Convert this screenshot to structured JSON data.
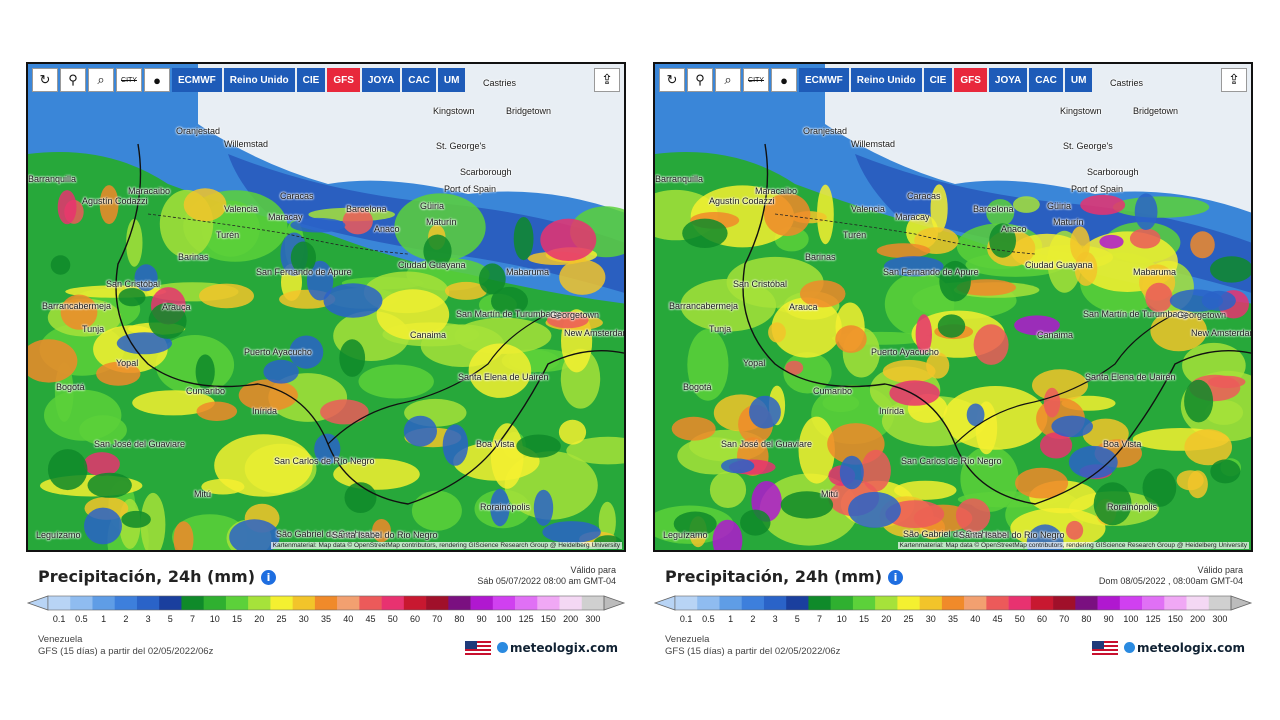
{
  "toolbar": {
    "icons": [
      "refresh-icon",
      "location-pin-icon",
      "zoom-icon",
      "city-toggle-icon",
      "dot-icon"
    ],
    "city_label": "CITY",
    "models": [
      "ECMWF",
      "Reino Unido",
      "CIE",
      "GFS",
      "JOYA",
      "CAC",
      "UM"
    ],
    "active_model": "GFS",
    "share_icon": "share-icon"
  },
  "places": [
    "Castries",
    "Kingstown",
    "Bridgetown",
    "St. George's",
    "Oranjestad",
    "Willemstad",
    "Scarborough",
    "Port of Spain",
    "Barranquilla",
    "Maracaibo",
    "Caracas",
    "Valencia",
    "Maracay",
    "Barcelona",
    "Güiria",
    "Maturín",
    "Agustín Codazzi",
    "Anaco",
    "Turén",
    "Barinas",
    "Ciudad Guayana",
    "Mabaruma",
    "San Cristóbal",
    "San Fernando de Apure",
    "Barrancabermeja",
    "Arauca",
    "San Martín de Turumbang",
    "Georgetown",
    "New Amsterdam",
    "Canaima",
    "Puerto Ayacucho",
    "Tunja",
    "Yopal",
    "Bogotá",
    "Santa Elena de Uairén",
    "Cumaribo",
    "Inírida",
    "Boa Vista",
    "San José del Guaviare",
    "San Carlos de Río Negro",
    "Mitú",
    "Rorainópolis",
    "São Gabriel da Cachoeira",
    "Santa Isabel do Rio Negro",
    "Leguízamo"
  ],
  "attribution": "Kartenmaterial: Map data © OpenStreetMap contributors, rendering GIScience Research Group @ Heidelberg University",
  "panels": [
    {
      "title": "Precipitación, 24h (mm)",
      "valid_label": "Válido para",
      "valid_time": "Sáb 05/07/2022 08:00 am GMT-04",
      "region": "Venezuela",
      "model_run": "GFS (15 días) a partir del 02/05/2022/06z"
    },
    {
      "title": "Precipitación, 24h (mm)",
      "valid_label": "Válido para",
      "valid_time": "Dom 08/05/2022 , 08:00am GMT-04",
      "region": "Venezuela",
      "model_run": "GFS (15 días) a partir del 02/05/2022/06z"
    }
  ],
  "colorbar": {
    "ticks": [
      "0.1",
      "0.5",
      "1",
      "2",
      "3",
      "5",
      "7",
      "10",
      "15",
      "20",
      "25",
      "30",
      "35",
      "40",
      "45",
      "50",
      "60",
      "70",
      "80",
      "90",
      "100",
      "125",
      "150",
      "200",
      "300"
    ],
    "colors": [
      "#b8d4f5",
      "#8fbcf0",
      "#5f9de6",
      "#3d7fdc",
      "#2a63c8",
      "#1a3f9e",
      "#0f8a2a",
      "#2fb030",
      "#5cd13a",
      "#a6e23a",
      "#f4f030",
      "#f2c42a",
      "#f08a2a",
      "#f2a070",
      "#ec5a5a",
      "#e83270",
      "#c81830",
      "#a0102a",
      "#7a1080",
      "#b018d0",
      "#d040f0",
      "#e070f5",
      "#f0a8f5",
      "#f4d8f4",
      "#d0d0d0"
    ]
  },
  "brand": {
    "name": "meteologix.com",
    "flag_icon": "us-flag-icon"
  },
  "colors": {
    "model_button": "#1e5bb8",
    "active_model": "#e8283c",
    "info": "#1e6ee0"
  }
}
